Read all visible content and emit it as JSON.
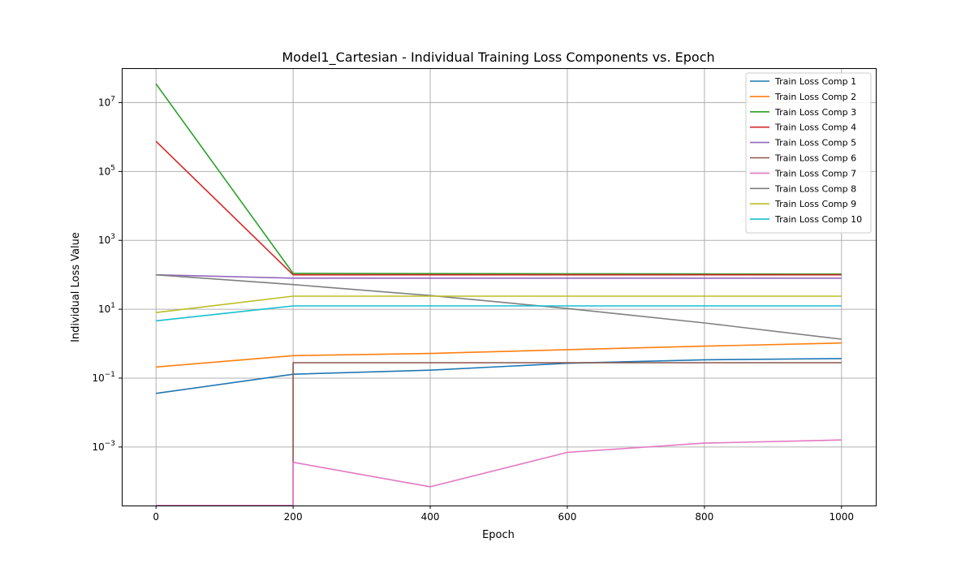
{
  "chart_data": {
    "type": "line",
    "title": "Model1_Cartesian - Individual Training Loss Components vs. Epoch",
    "xlabel": "Epoch",
    "ylabel": "Individual Loss Value",
    "yscale": "log",
    "xlim": [
      -50,
      1050
    ],
    "ylim": [
      2e-05,
      100000000
    ],
    "grid": true,
    "legend_position": "top-right",
    "xticks": [
      {
        "value": 0,
        "label": "0"
      },
      {
        "value": 200,
        "label": "200"
      },
      {
        "value": 400,
        "label": "400"
      },
      {
        "value": 600,
        "label": "600"
      },
      {
        "value": 800,
        "label": "800"
      },
      {
        "value": 1000,
        "label": "1000"
      }
    ],
    "yticks": [
      {
        "value": 0.001,
        "base": "10",
        "exp": "−3"
      },
      {
        "value": 0.1,
        "base": "10",
        "exp": "−1"
      },
      {
        "value": 10,
        "base": "10",
        "exp": "1"
      },
      {
        "value": 1000,
        "base": "10",
        "exp": "3"
      },
      {
        "value": 100000,
        "base": "10",
        "exp": "5"
      },
      {
        "value": 10000000,
        "base": "10",
        "exp": "7"
      }
    ],
    "series": [
      {
        "name": "Train Loss Comp 1",
        "color": "#1f77b4",
        "x": [
          0,
          200,
          400,
          600,
          800,
          1000
        ],
        "y": [
          0.036,
          0.13,
          0.17,
          0.27,
          0.34,
          0.37
        ]
      },
      {
        "name": "Train Loss Comp 2",
        "color": "#ff7f0e",
        "x": [
          0,
          200,
          400,
          600,
          800,
          1000
        ],
        "y": [
          0.21,
          0.45,
          0.52,
          0.67,
          0.85,
          1.05
        ]
      },
      {
        "name": "Train Loss Comp 3",
        "color": "#2ca02c",
        "x": [
          0,
          200,
          400,
          600,
          800,
          1000
        ],
        "y": [
          35000000,
          110,
          108,
          107,
          106,
          105
        ]
      },
      {
        "name": "Train Loss Comp 4",
        "color": "#d62728",
        "x": [
          0,
          200,
          400,
          600,
          800,
          1000
        ],
        "y": [
          750000,
          100,
          100,
          100,
          100,
          100
        ]
      },
      {
        "name": "Train Loss Comp 5",
        "color": "#9467bd",
        "x": [
          0,
          200,
          400,
          600,
          800,
          1000
        ],
        "y": [
          100,
          80,
          80,
          80,
          80,
          80
        ]
      },
      {
        "name": "Train Loss Comp 6",
        "color": "#8c564b",
        "x": [
          0,
          200,
          200,
          400,
          600,
          800,
          1000
        ],
        "y": [
          2e-05,
          2e-05,
          0.28,
          0.28,
          0.28,
          0.28,
          0.28
        ]
      },
      {
        "name": "Train Loss Comp 7",
        "color": "#e377c2",
        "x": [
          0,
          200,
          200,
          400,
          600,
          800,
          1000
        ],
        "y": [
          2e-05,
          2e-05,
          0.00036,
          7e-05,
          0.0007,
          0.0013,
          0.0016
        ]
      },
      {
        "name": "Train Loss Comp 8",
        "color": "#7f7f7f",
        "x": [
          0,
          200,
          400,
          600,
          800,
          1000
        ],
        "y": [
          100,
          52,
          25,
          10.5,
          4,
          1.35
        ]
      },
      {
        "name": "Train Loss Comp 9",
        "color": "#bcbd22",
        "x": [
          0,
          200,
          400,
          600,
          800,
          1000
        ],
        "y": [
          8,
          24,
          24,
          24,
          24,
          24
        ]
      },
      {
        "name": "Train Loss Comp 10",
        "color": "#17becf",
        "x": [
          0,
          200,
          400,
          600,
          800,
          1000
        ],
        "y": [
          4.6,
          12.5,
          12.5,
          12.5,
          12.5,
          12.5
        ]
      }
    ]
  }
}
